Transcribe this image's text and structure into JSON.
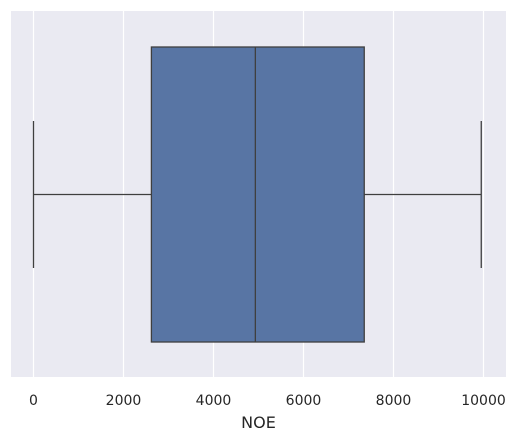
{
  "chart_data": {
    "type": "box",
    "orientation": "horizontal",
    "title": "",
    "xlabel": "NOE",
    "ylabel": "",
    "xlim": [
      -500,
      10500
    ],
    "x_ticks": [
      0,
      2000,
      4000,
      6000,
      8000,
      10000
    ],
    "x_tick_labels": [
      "0",
      "2000",
      "4000",
      "6000",
      "8000",
      "10000"
    ],
    "grid": true,
    "series": [
      {
        "min": 0,
        "q1": 2620,
        "median": 4930,
        "q3": 7350,
        "max": 9950
      }
    ],
    "colors": {
      "background": "#EAEAF2",
      "box_fill": "#5875A4",
      "line": "#3F3F3F",
      "grid": "#FFFFFF"
    }
  }
}
